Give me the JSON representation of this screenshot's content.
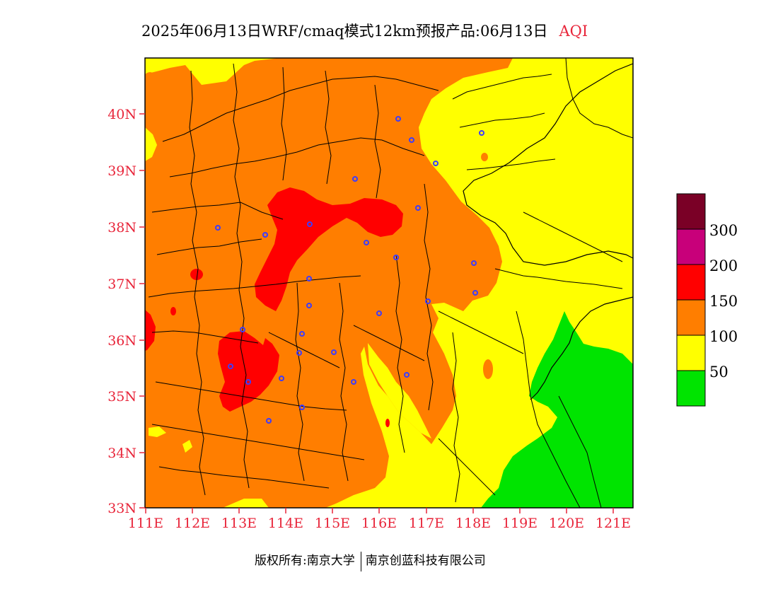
{
  "title": {
    "main": "2025年06月13日WRF/cmaq模式12km预报产品:06月13日",
    "variable": "AQI"
  },
  "axes": {
    "lat_labels": [
      "40N",
      "39N",
      "38N",
      "37N",
      "36N",
      "35N",
      "34N",
      "33N"
    ],
    "lon_labels": [
      "111E",
      "112E",
      "113E",
      "114E",
      "115E",
      "116E",
      "117E",
      "118E",
      "119E",
      "120E",
      "121E"
    ],
    "label_color": "#e8253a"
  },
  "legend": {
    "labels": [
      "300",
      "200",
      "150",
      "100",
      "50"
    ],
    "colors": {
      "top": "#7a0026",
      "level_300": "#c8007a",
      "level_200": "#ff0000",
      "level_150": "#ff7e00",
      "level_100": "#ffff00",
      "level_50": "#00e400"
    }
  },
  "footer": {
    "left": "版权所有:南京大学",
    "right": "南京创蓝科技有限公司"
  }
}
